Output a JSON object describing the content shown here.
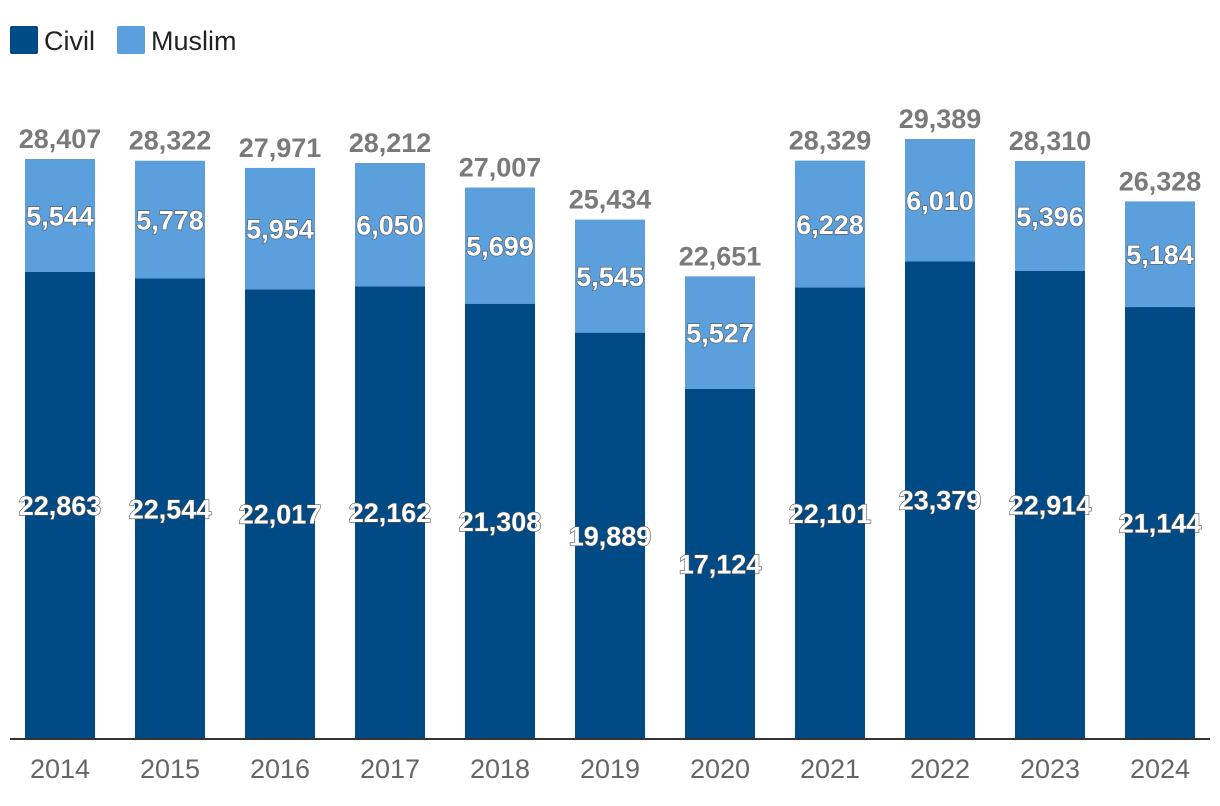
{
  "chart_data": {
    "type": "bar",
    "stacked": true,
    "categories": [
      "2014",
      "2015",
      "2016",
      "2017",
      "2018",
      "2019",
      "2020",
      "2021",
      "2022",
      "2023",
      "2024"
    ],
    "series": [
      {
        "name": "Civil",
        "color": "#004a85",
        "values": [
          22863,
          22544,
          22017,
          22162,
          21308,
          19889,
          17124,
          22101,
          23379,
          22914,
          21144
        ],
        "labels": [
          "22,863",
          "22,544",
          "22,017",
          "22,162",
          "21,308",
          "19,889",
          "17,124",
          "22,101",
          "23,379",
          "22,914",
          "21,144"
        ]
      },
      {
        "name": "Muslim",
        "color": "#5b9fdc",
        "values": [
          5544,
          5778,
          5954,
          6050,
          5699,
          5545,
          5527,
          6228,
          6010,
          5396,
          5184
        ],
        "labels": [
          "5,544",
          "5,778",
          "5,954",
          "6,050",
          "5,699",
          "5,545",
          "5,527",
          "6,228",
          "6,010",
          "5,396",
          "5,184"
        ]
      }
    ],
    "totals": [
      28407,
      28322,
      27971,
      28212,
      27007,
      25434,
      22651,
      28329,
      29389,
      28310,
      26328
    ],
    "total_labels": [
      "28,407",
      "28,322",
      "27,971",
      "28,212",
      "27,007",
      "25,434",
      "22,651",
      "28,329",
      "29,389",
      "28,310",
      "26,328"
    ],
    "title": "",
    "xlabel": "",
    "ylabel": "",
    "ylim": [
      0,
      29389
    ],
    "grid": false,
    "legend": "top-left",
    "colors": {
      "total_label": "#7a7a7a",
      "tick_label": "#666666",
      "axis": "#333333"
    }
  }
}
